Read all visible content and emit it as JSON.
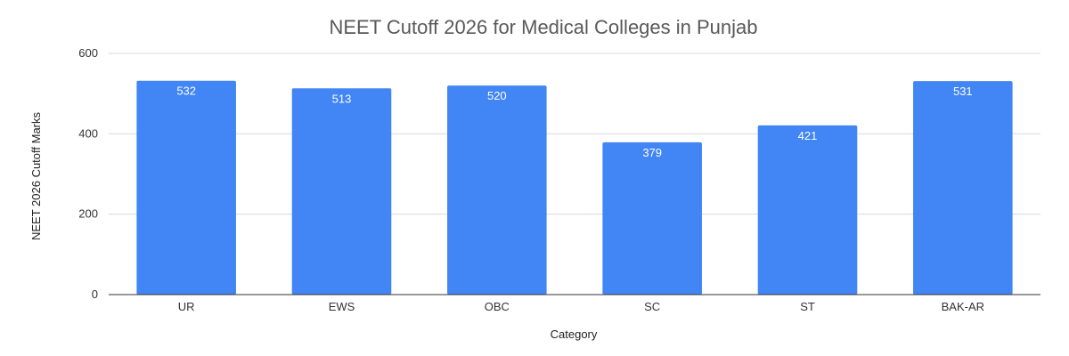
{
  "chart_data": {
    "type": "bar",
    "title": "NEET Cutoff 2026 for Medical Colleges in Punjab",
    "xlabel": "Category",
    "ylabel": "NEET 2026 Cutoff Marks",
    "categories": [
      "UR",
      "EWS",
      "OBC",
      "SC",
      "ST",
      "BAK-AR"
    ],
    "values": [
      532,
      513,
      520,
      379,
      421,
      531
    ],
    "ylim": [
      0,
      600
    ],
    "yticks": [
      0,
      200,
      400,
      600
    ],
    "grid": true,
    "legend": "none",
    "bar_color": "#4285f4"
  }
}
